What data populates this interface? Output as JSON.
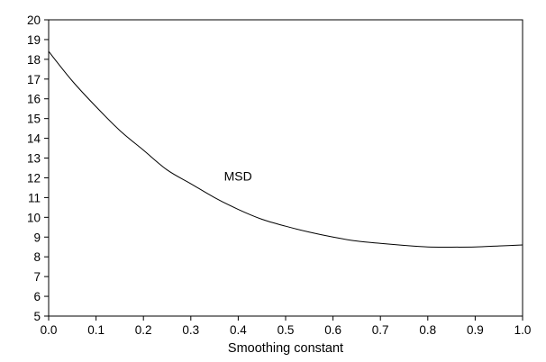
{
  "chart_data": {
    "type": "line",
    "title": "",
    "xlabel": "Smoothing constant",
    "ylabel": "",
    "xlim": [
      0.0,
      1.0
    ],
    "ylim": [
      5,
      20
    ],
    "xticks": [
      "0.0",
      "0.1",
      "0.2",
      "0.3",
      "0.4",
      "0.5",
      "0.6",
      "0.7",
      "0.8",
      "0.9",
      "1.0"
    ],
    "yticks": [
      "5",
      "6",
      "7",
      "8",
      "9",
      "10",
      "11",
      "12",
      "13",
      "14",
      "15",
      "16",
      "17",
      "18",
      "19",
      "20"
    ],
    "grid": false,
    "legend": "none",
    "annotations": [
      {
        "text": "MSD",
        "x": 0.37,
        "y": 12.1
      }
    ],
    "series": [
      {
        "name": "MSD",
        "color": "#000000",
        "x": [
          0.0,
          0.05,
          0.1,
          0.15,
          0.2,
          0.25,
          0.3,
          0.35,
          0.4,
          0.45,
          0.5,
          0.55,
          0.6,
          0.65,
          0.7,
          0.75,
          0.8,
          0.85,
          0.9,
          0.95,
          1.0
        ],
        "y": [
          18.4,
          16.9,
          15.6,
          14.4,
          13.4,
          12.4,
          11.7,
          11.0,
          10.4,
          9.9,
          9.55,
          9.25,
          9.0,
          8.8,
          8.68,
          8.58,
          8.5,
          8.49,
          8.5,
          8.55,
          8.6
        ]
      }
    ]
  }
}
